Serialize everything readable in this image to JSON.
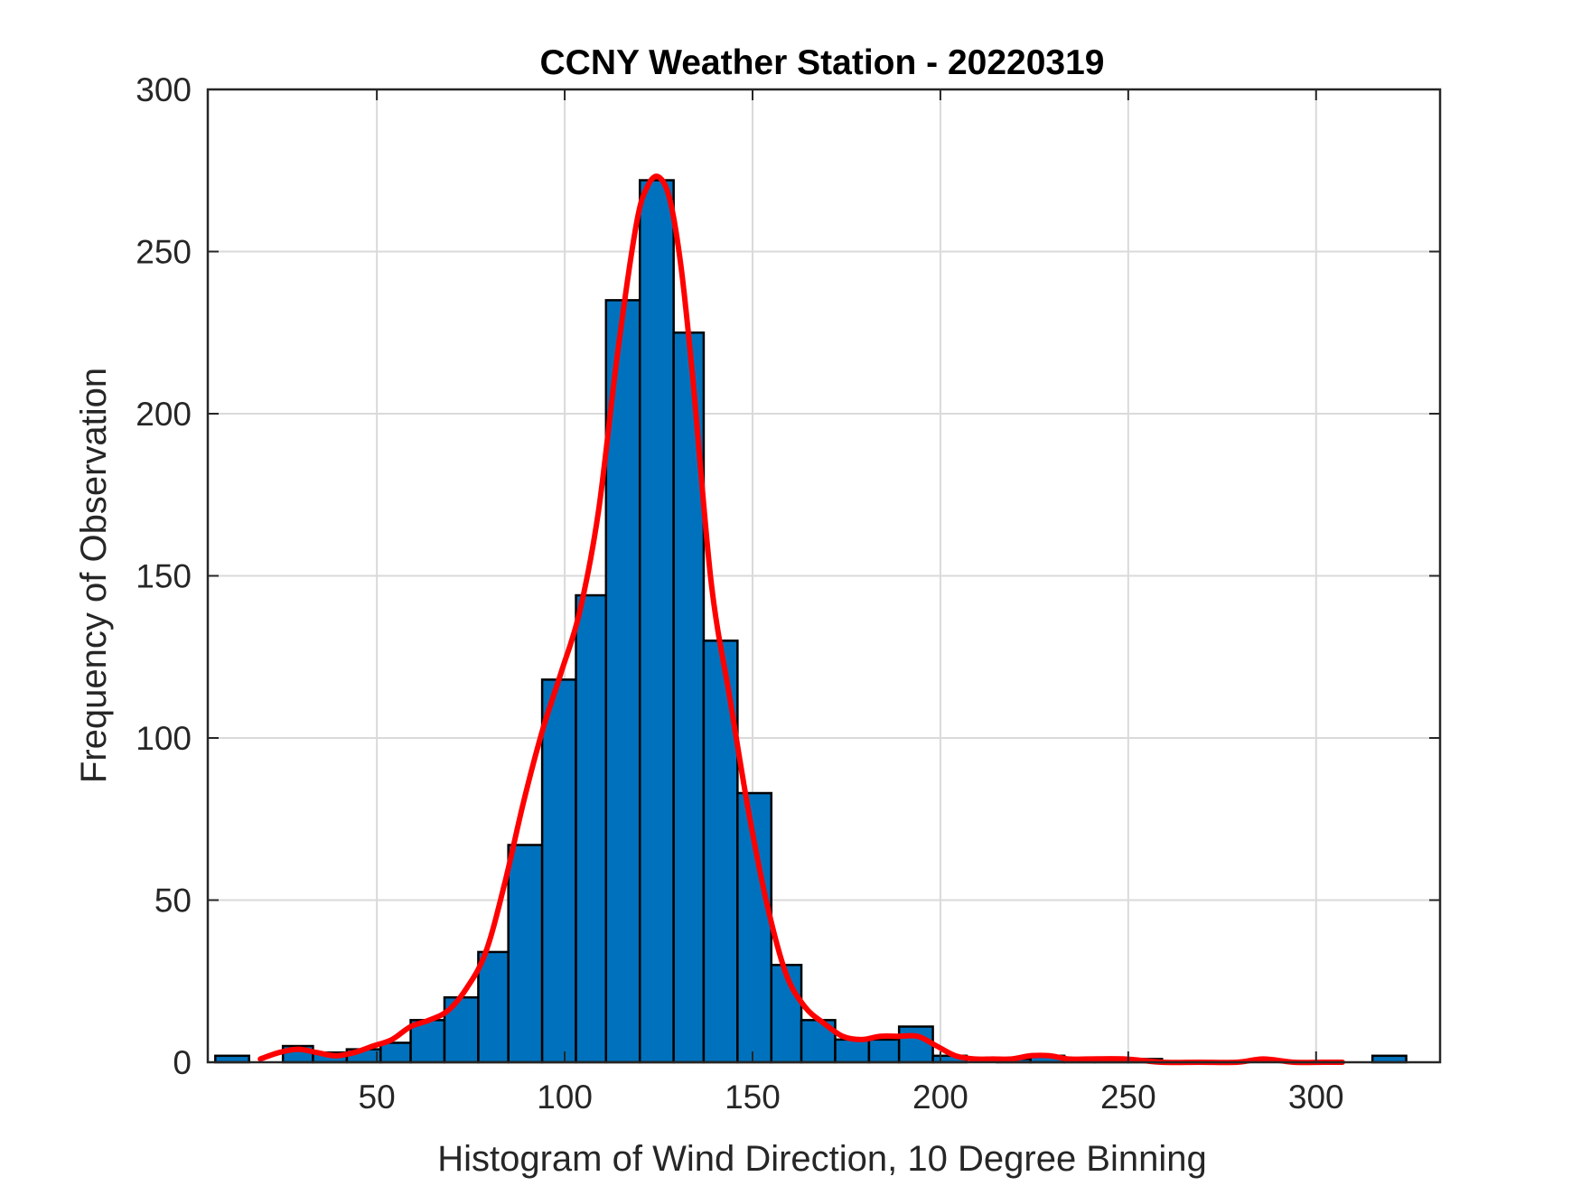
{
  "chart_data": {
    "type": "bar",
    "title": "CCNY Weather Station - 20220319",
    "xlabel": "Histogram of Wind Direction, 10 Degree Binning",
    "ylabel": "Frequency of Observation",
    "xlim": [
      5,
      333
    ],
    "ylim": [
      0,
      300
    ],
    "xticks": [
      50,
      100,
      150,
      200,
      250,
      300
    ],
    "yticks": [
      0,
      50,
      100,
      150,
      200,
      250,
      300
    ],
    "grid": true,
    "bar_color": "#0072BD",
    "bar_edge_color": "#000000",
    "curve_color": "#FF0000",
    "bins": [
      {
        "left": 7,
        "right": 16,
        "count": 2
      },
      {
        "left": 25,
        "right": 33,
        "count": 5
      },
      {
        "left": 33,
        "right": 42,
        "count": 3
      },
      {
        "left": 42,
        "right": 51,
        "count": 4
      },
      {
        "left": 51,
        "right": 59,
        "count": 6
      },
      {
        "left": 59,
        "right": 68,
        "count": 13
      },
      {
        "left": 68,
        "right": 77,
        "count": 20
      },
      {
        "left": 77,
        "right": 85,
        "count": 34
      },
      {
        "left": 85,
        "right": 94,
        "count": 67
      },
      {
        "left": 94,
        "right": 103,
        "count": 118
      },
      {
        "left": 103,
        "right": 111,
        "count": 144
      },
      {
        "left": 111,
        "right": 120,
        "count": 235
      },
      {
        "left": 120,
        "right": 129,
        "count": 272
      },
      {
        "left": 129,
        "right": 137,
        "count": 225
      },
      {
        "left": 137,
        "right": 146,
        "count": 130
      },
      {
        "left": 146,
        "right": 155,
        "count": 83
      },
      {
        "left": 155,
        "right": 163,
        "count": 30
      },
      {
        "left": 163,
        "right": 172,
        "count": 13
      },
      {
        "left": 172,
        "right": 181,
        "count": 7
      },
      {
        "left": 181,
        "right": 189,
        "count": 7
      },
      {
        "left": 189,
        "right": 198,
        "count": 11
      },
      {
        "left": 198,
        "right": 207,
        "count": 2
      },
      {
        "left": 215,
        "right": 224,
        "count": 1
      },
      {
        "left": 224,
        "right": 233,
        "count": 2
      },
      {
        "left": 233,
        "right": 241,
        "count": 1
      },
      {
        "left": 241,
        "right": 250,
        "count": 1
      },
      {
        "left": 250,
        "right": 259,
        "count": 1
      },
      {
        "left": 315,
        "right": 324,
        "count": 2
      }
    ],
    "curve": {
      "x": [
        19,
        24,
        29,
        34,
        39,
        44,
        49,
        54,
        59,
        64,
        69,
        74,
        79,
        84,
        89,
        94,
        99,
        104,
        109,
        114,
        119,
        122,
        125,
        128,
        131,
        134,
        139,
        144,
        149,
        154,
        159,
        164,
        169,
        174,
        179,
        184,
        189,
        194,
        199,
        204,
        209,
        214,
        219,
        224,
        229,
        234,
        239,
        249,
        259,
        269,
        279,
        286,
        294,
        302,
        307
      ],
      "y": [
        1,
        3,
        4,
        3,
        2,
        3,
        5,
        7,
        11,
        13,
        16,
        23,
        34,
        55,
        80,
        102,
        120,
        139,
        170,
        218,
        258,
        270,
        273,
        266,
        245,
        212,
        148,
        112,
        77,
        48,
        27,
        17,
        12,
        8,
        7,
        8,
        8,
        8,
        5,
        2,
        1,
        1,
        1,
        2,
        2,
        1,
        1,
        1,
        0,
        0,
        0,
        1,
        0,
        0,
        0
      ]
    }
  }
}
